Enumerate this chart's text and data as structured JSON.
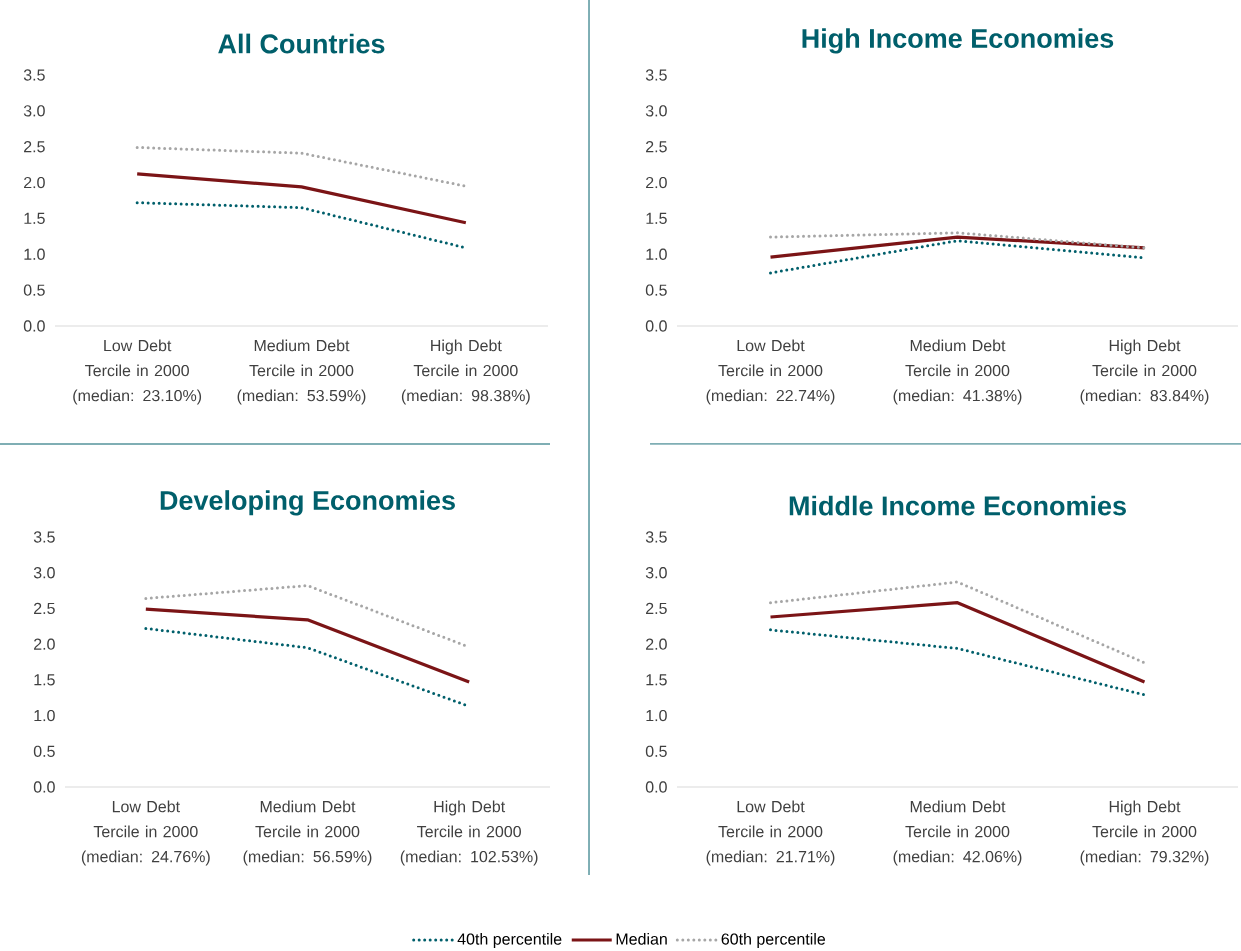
{
  "chart_data": [
    {
      "type": "line",
      "title": "All Countries",
      "categories": [
        "Low Debt Tercile in 2000 (median: 23.10%)",
        "Medium Debt Tercile in 2000 (median: 53.59%)",
        "High Debt Tercile in 2000 (median: 98.38%)"
      ],
      "ylim": [
        0,
        3.5
      ],
      "yticks": [
        {
          "value": 0,
          "label": "0.0"
        },
        {
          "value": 0.5,
          "label": "0.5"
        },
        {
          "value": 1,
          "label": "1.0"
        },
        {
          "value": 1.5,
          "label": "1.5"
        },
        {
          "value": 2,
          "label": "2.0"
        },
        {
          "value": 2.5,
          "label": "2.5"
        },
        {
          "value": 3,
          "label": "3.0"
        },
        {
          "value": 3.5,
          "label": "3.5"
        }
      ],
      "series": [
        {
          "color": "#005f6b",
          "line_style": "dotted",
          "values": [
            1.72,
            1.65,
            1.09
          ]
        },
        {
          "color": "#7b1416",
          "line_style": "solid",
          "values": [
            2.12,
            1.94,
            1.44
          ]
        },
        {
          "color": "#a6a6a6",
          "line_style": "dotted",
          "values": [
            2.49,
            2.41,
            1.95
          ]
        }
      ]
    },
    {
      "type": "line",
      "title": "High Income Economies",
      "categories": [
        "Low Debt Tercile in 2000 (median: 22.74%)",
        "Medium Debt Tercile in 2000 (median: 41.38%)",
        "High Debt Tercile in 2000 (median: 83.84%)"
      ],
      "ylim": [
        0,
        3.5
      ],
      "yticks": [
        {
          "value": 0,
          "label": "0.0"
        },
        {
          "value": 0.5,
          "label": "0.5"
        },
        {
          "value": 1,
          "label": "1.0"
        },
        {
          "value": 1.5,
          "label": "1.5"
        },
        {
          "value": 2,
          "label": "2.0"
        },
        {
          "value": 2.5,
          "label": "2.5"
        },
        {
          "value": 3,
          "label": "3.0"
        },
        {
          "value": 3.5,
          "label": "3.5"
        }
      ],
      "series": [
        {
          "color": "#005f6b",
          "line_style": "dotted",
          "values": [
            0.74,
            1.19,
            0.95
          ]
        },
        {
          "color": "#7b1416",
          "line_style": "solid",
          "values": [
            0.96,
            1.24,
            1.09
          ]
        },
        {
          "color": "#a6a6a6",
          "line_style": "dotted",
          "values": [
            1.24,
            1.3,
            1.09
          ]
        }
      ]
    },
    {
      "type": "line",
      "title": "Developing Economies",
      "legend": "bottom",
      "categories": [
        "Low Debt Tercile in 2000 (median: 24.76%)",
        "Medium Debt Tercile in 2000 (median: 56.59%)",
        "High Debt Tercile in 2000 (median: 102.53%)"
      ],
      "ylim": [
        0,
        3.5
      ],
      "yticks": [
        {
          "value": 0,
          "label": "0.0"
        },
        {
          "value": 0.5,
          "label": "0.5"
        },
        {
          "value": 1,
          "label": "1.0"
        },
        {
          "value": 1.5,
          "label": "1.5"
        },
        {
          "value": 2,
          "label": "2.0"
        },
        {
          "value": 2.5,
          "label": "2.5"
        },
        {
          "value": 3,
          "label": "3.0"
        },
        {
          "value": 3.5,
          "label": "3.5"
        }
      ],
      "series": [
        {
          "name": "40th percentile",
          "color": "#005f6b",
          "line_style": "dotted",
          "values": [
            2.22,
            1.95,
            1.13
          ]
        },
        {
          "name": "Median",
          "color": "#7b1416",
          "line_style": "solid",
          "values": [
            2.49,
            2.34,
            1.47
          ]
        },
        {
          "name": "60th percentile",
          "color": "#a6a6a6",
          "line_style": "dotted",
          "values": [
            2.64,
            2.82,
            1.96
          ]
        }
      ]
    },
    {
      "type": "line",
      "title": "Middle Income Economies",
      "categories": [
        "Low Debt Tercile in 2000 (median: 21.71%)",
        "Medium Debt Tercile in 2000 (median: 42.06%)",
        "High Debt Tercile in 2000 (median: 79.32%)"
      ],
      "ylim": [
        0,
        3.5
      ],
      "yticks": [
        {
          "value": 0,
          "label": "0.0"
        },
        {
          "value": 0.5,
          "label": "0.5"
        },
        {
          "value": 1,
          "label": "1.0"
        },
        {
          "value": 1.5,
          "label": "1.5"
        },
        {
          "value": 2,
          "label": "2.0"
        },
        {
          "value": 2.5,
          "label": "2.5"
        },
        {
          "value": 3,
          "label": "3.0"
        },
        {
          "value": 3.5,
          "label": "3.5"
        }
      ],
      "series": [
        {
          "color": "#005f6b",
          "line_style": "dotted",
          "values": [
            2.2,
            1.94,
            1.29
          ]
        },
        {
          "color": "#7b1416",
          "line_style": "solid",
          "values": [
            2.38,
            2.58,
            1.47
          ]
        },
        {
          "color": "#a6a6a6",
          "line_style": "dotted",
          "values": [
            2.58,
            2.87,
            1.74
          ]
        }
      ]
    }
  ]
}
